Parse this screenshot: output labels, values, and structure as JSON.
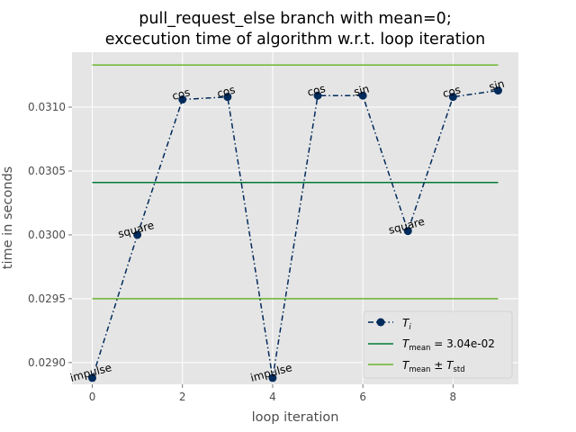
{
  "chart_data": {
    "type": "line",
    "title_line1": "pull_request_else branch with mean=0;",
    "title_line2": "excecution time of algorithm w.r.t. loop iteration",
    "xlabel": "loop iteration",
    "ylabel": "time in seconds",
    "xlim": [
      -0.45,
      9.45
    ],
    "ylim": [
      0.02883,
      0.03143
    ],
    "xticks": [
      0,
      2,
      4,
      6,
      8
    ],
    "xtick_labels": [
      "0",
      "2",
      "4",
      "6",
      "8"
    ],
    "yticks": [
      0.029,
      0.0295,
      0.03,
      0.0305,
      0.031
    ],
    "ytick_labels": [
      "0.0290",
      "0.0295",
      "0.0300",
      "0.0305",
      "0.0310"
    ],
    "grid": true,
    "legend_position": "lower-right",
    "series": [
      {
        "name": "T_i",
        "color": "#002b5c",
        "x": [
          0,
          1,
          2,
          3,
          4,
          5,
          6,
          7,
          8,
          9
        ],
        "y": [
          0.02888,
          0.03,
          0.03106,
          0.03108,
          0.02888,
          0.03109,
          0.03109,
          0.03003,
          0.03108,
          0.03113
        ],
        "point_labels": [
          "impulse",
          "square",
          "cos",
          "cos",
          "impulse",
          "cos",
          "sin",
          "square",
          "cos",
          "sin"
        ]
      }
    ],
    "mean": 0.03041,
    "mean_label": "3.04e-02",
    "upper": 0.03133,
    "lower": 0.0295,
    "mean_color": "#007a33",
    "std_color": "#6bb52d",
    "legend": {
      "ti_symbol": "T",
      "ti_sub": "i",
      "mean_symbol": "T",
      "mean_sub": "mean",
      "mean_eq": " = 3.04e-02",
      "std_symbol": "T",
      "std_sub": "mean",
      "std_pm": " ± ",
      "std_symbol2": "T",
      "std_sub2": "std"
    }
  }
}
